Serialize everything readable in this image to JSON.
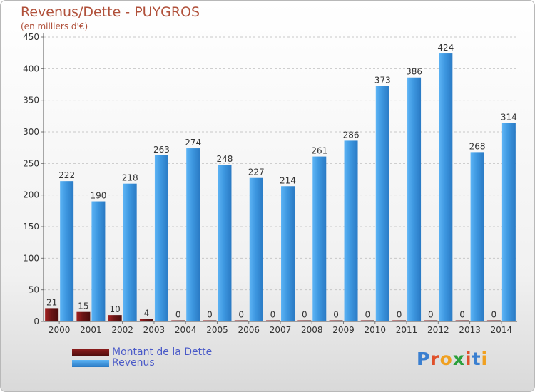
{
  "title": "Revenus/Dette - PUYGROS",
  "subtitle": "(en milliers d'€)",
  "legend": {
    "debt_label": "Montant de la Dette",
    "revenue_label": "Revenus"
  },
  "brand": {
    "text": "Proxiti",
    "colors": [
      "#3a7fd0",
      "#e0502a",
      "#f0a020",
      "#2ca03c",
      "#e0502a",
      "#3a7fd0",
      "#f0a020"
    ]
  },
  "colors": {
    "debt": "#6b1515",
    "revenue": "#3d97e0",
    "axis_text": "#333333"
  },
  "chart_data": {
    "type": "bar",
    "categories": [
      "2000",
      "2001",
      "2002",
      "2003",
      "2004",
      "2005",
      "2006",
      "2007",
      "2008",
      "2009",
      "2010",
      "2011",
      "2012",
      "2013",
      "2014"
    ],
    "series": [
      {
        "name": "Montant de la Dette",
        "values": [
          21,
          15,
          10,
          4,
          0,
          0,
          0,
          0,
          0,
          0,
          0,
          0,
          0,
          0,
          0
        ]
      },
      {
        "name": "Revenus",
        "values": [
          222,
          190,
          218,
          263,
          274,
          248,
          227,
          214,
          261,
          286,
          373,
          386,
          424,
          268,
          314
        ]
      }
    ],
    "ylim": [
      0,
      450
    ],
    "yticks": [
      0,
      50,
      100,
      150,
      200,
      250,
      300,
      350,
      400,
      450
    ],
    "grid": true,
    "legend_position": "bottom-left"
  }
}
